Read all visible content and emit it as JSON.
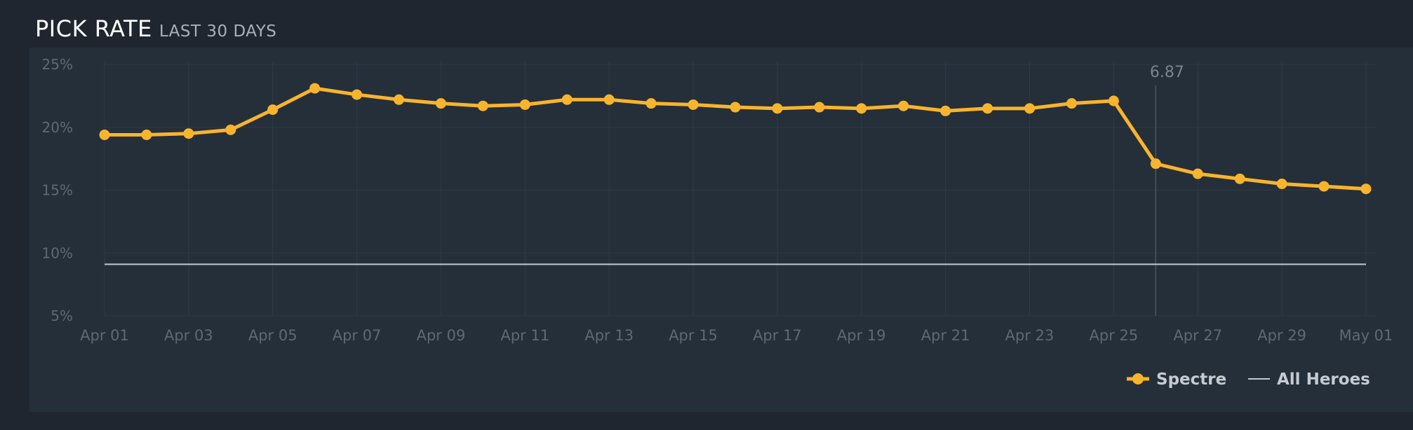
{
  "header": {
    "title": "PICK RATE",
    "subtitle": "LAST 30 DAYS"
  },
  "colors": {
    "spectre": "#f8b42c",
    "all_heroes": "#c2c8cf",
    "grid": "#303a45"
  },
  "chart_data": {
    "type": "line",
    "title": "PICK RATE",
    "subtitle": "LAST 30 DAYS",
    "ylim": [
      5,
      25
    ],
    "yticks": [
      "25%",
      "20%",
      "15%",
      "10%",
      "5%"
    ],
    "ytick_values": [
      25,
      20,
      15,
      10,
      5
    ],
    "x": [
      "Apr 01",
      "Apr 02",
      "Apr 03",
      "Apr 04",
      "Apr 05",
      "Apr 06",
      "Apr 07",
      "Apr 08",
      "Apr 09",
      "Apr 10",
      "Apr 11",
      "Apr 12",
      "Apr 13",
      "Apr 14",
      "Apr 15",
      "Apr 16",
      "Apr 17",
      "Apr 18",
      "Apr 19",
      "Apr 20",
      "Apr 21",
      "Apr 22",
      "Apr 23",
      "Apr 24",
      "Apr 25",
      "Apr 26",
      "Apr 27",
      "Apr 28",
      "Apr 29",
      "Apr 30",
      "May 01"
    ],
    "xtick_labels": [
      "Apr 01",
      "Apr 03",
      "Apr 05",
      "Apr 07",
      "Apr 09",
      "Apr 11",
      "Apr 13",
      "Apr 15",
      "Apr 17",
      "Apr 19",
      "Apr 21",
      "Apr 23",
      "Apr 25",
      "Apr 27",
      "Apr 29",
      "May 01"
    ],
    "series": [
      {
        "name": "Spectre",
        "values": [
          19.4,
          19.4,
          19.5,
          19.8,
          21.4,
          23.1,
          22.6,
          22.2,
          21.9,
          21.7,
          21.8,
          22.2,
          22.2,
          21.9,
          21.8,
          21.6,
          21.5,
          21.6,
          21.5,
          21.7,
          21.3,
          21.5,
          21.5,
          21.9,
          22.1,
          17.1,
          16.3,
          15.9,
          15.5,
          15.3,
          15.1
        ]
      },
      {
        "name": "All Heroes",
        "values": [
          9.1,
          9.1,
          9.1,
          9.1,
          9.1,
          9.1,
          9.1,
          9.1,
          9.1,
          9.1,
          9.1,
          9.1,
          9.1,
          9.1,
          9.1,
          9.1,
          9.1,
          9.1,
          9.1,
          9.1,
          9.1,
          9.1,
          9.1,
          9.1,
          9.1,
          9.1,
          9.1,
          9.1,
          9.1,
          9.1,
          9.1
        ]
      }
    ],
    "annotations": [
      {
        "label": "6.87",
        "x": "Apr 26"
      }
    ],
    "grid": true,
    "legend_position": "bottom-right"
  }
}
